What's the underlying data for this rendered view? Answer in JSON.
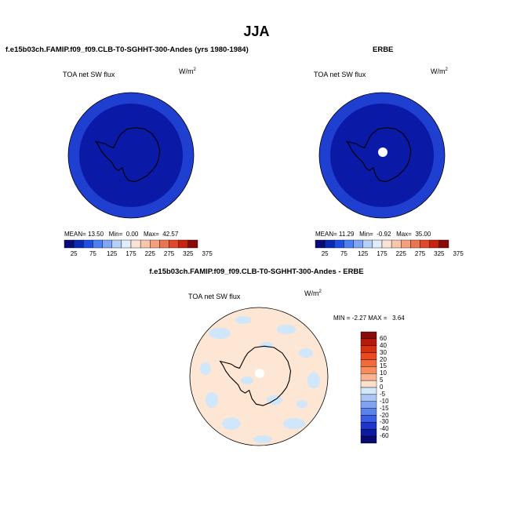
{
  "title": "JJA",
  "colors": {
    "ocean_outer": "#1f3fd0",
    "ocean_inner": "#0a1aa6",
    "land_outline": "#000000",
    "diff_background": "#fde6d3",
    "diff_negative": "#cfe6fb",
    "pole_hole": "#ffffff"
  },
  "panels": [
    {
      "id": "model",
      "subtitle": "f.e15b03ch.FAMIP.f09_f09.CLB-T0-SGHHT-300-Andes (yrs 1980-1984)",
      "field_label": "TOA net SW flux",
      "unit_base": "W/m",
      "unit_exp": "2",
      "stats": {
        "mean_label": "MEAN=",
        "mean": "13.50",
        "min_label": "Min=",
        "min": "0.00",
        "max_label": "Max=",
        "max": "42.57"
      },
      "pole_hole": false
    },
    {
      "id": "obs",
      "subtitle": "ERBE",
      "field_label": "TOA net SW flux",
      "unit_base": "W/m",
      "unit_exp": "2",
      "stats": {
        "mean_label": "MEAN=",
        "mean": "11.29",
        "min_label": "Min=",
        "min": "-0.92",
        "max_label": "Max=",
        "max": "35.00"
      },
      "pole_hole": true
    }
  ],
  "abs_colorbar": {
    "ticks": [
      "25",
      "75",
      "125",
      "175",
      "225",
      "275",
      "325",
      "375"
    ],
    "colors": [
      "#0a0a78",
      "#0a2ab4",
      "#1f4fe0",
      "#4f7ff0",
      "#7fa6f6",
      "#b5cff9",
      "#e3ecfb",
      "#fbe3d6",
      "#f9c6ab",
      "#f3a07e",
      "#ec7654",
      "#e04a2c",
      "#c42410",
      "#8a0a0a"
    ]
  },
  "diff_panel": {
    "subtitle": "f.e15b03ch.FAMIP.f09_f09.CLB-T0-SGHHT-300-Andes - ERBE",
    "field_label": "TOA net SW flux",
    "unit_base": "W/m",
    "unit_exp": "2",
    "minmax": {
      "min_label": "MIN =",
      "min": "-2.27",
      "max_label": "MAX =",
      "max": "3.64"
    }
  },
  "diff_colorbar": {
    "ticks": [
      "60",
      "40",
      "30",
      "20",
      "15",
      "10",
      "5",
      "0",
      "-5",
      "-10",
      "-15",
      "-20",
      "-30",
      "-40",
      "-60"
    ],
    "colors": [
      "#8a0a0a",
      "#b51a0a",
      "#d6300f",
      "#ea4a1e",
      "#f26a3a",
      "#f78d5e",
      "#f9b592",
      "#fde0cc",
      "#d4e7fb",
      "#a9c6f7",
      "#7fa3f1",
      "#5a82ec",
      "#3a5ee3",
      "#1e36cc",
      "#0c1aa0",
      "#070a70"
    ]
  },
  "chart_data": [
    {
      "type": "heatmap",
      "title": "f.e15b03ch.FAMIP.f09_f09.CLB-T0-SGHHT-300-Andes (yrs 1980-1984)",
      "projection": "south-polar-stereographic",
      "variable": "TOA net SW flux",
      "units": "W/m2",
      "mean": 13.5,
      "min": 0.0,
      "max": 42.57,
      "colorbar_ticks": [
        25,
        75,
        125,
        175,
        225,
        275,
        325,
        375
      ]
    },
    {
      "type": "heatmap",
      "title": "ERBE",
      "projection": "south-polar-stereographic",
      "variable": "TOA net SW flux",
      "units": "W/m2",
      "mean": 11.29,
      "min": -0.92,
      "max": 35.0,
      "colorbar_ticks": [
        25,
        75,
        125,
        175,
        225,
        275,
        325,
        375
      ]
    },
    {
      "type": "heatmap",
      "title": "f.e15b03ch.FAMIP.f09_f09.CLB-T0-SGHHT-300-Andes - ERBE",
      "projection": "south-polar-stereographic",
      "variable": "TOA net SW flux",
      "units": "W/m2",
      "min": -2.27,
      "max": 3.64,
      "colorbar_ticks": [
        60,
        40,
        30,
        20,
        15,
        10,
        5,
        0,
        -5,
        -10,
        -15,
        -20,
        -30,
        -40,
        -60
      ]
    }
  ]
}
